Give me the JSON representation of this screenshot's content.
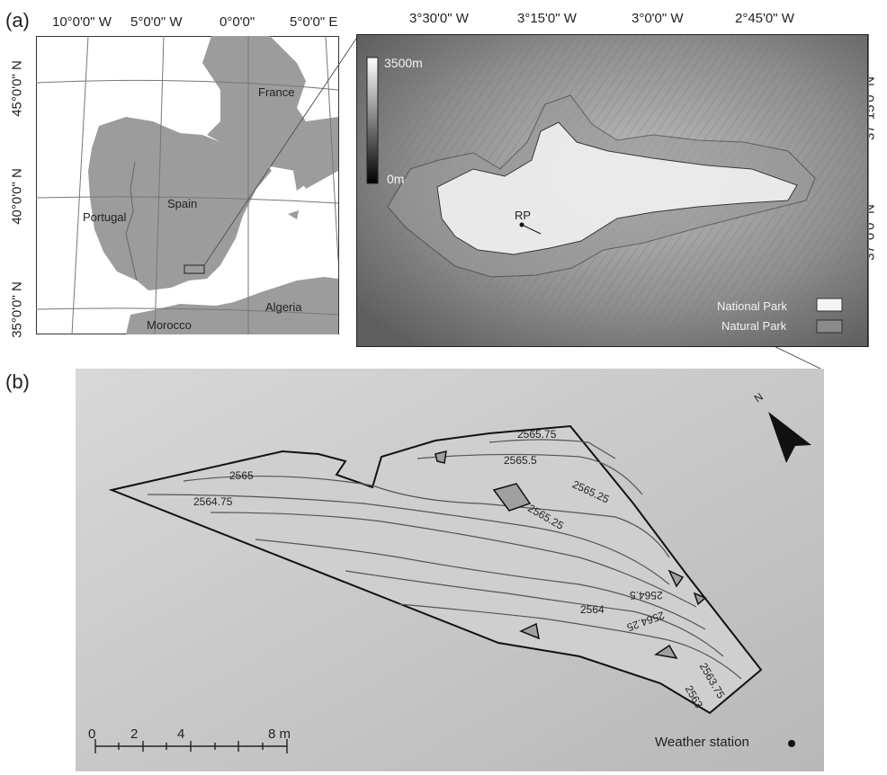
{
  "panel_a": {
    "letter": "(a)",
    "left_map": {
      "top_ticks": [
        "10°0'0\" W",
        "5°0'0\" W",
        "0°0'0\"",
        "5°0'0\" E"
      ],
      "left_ticks": [
        "45°0'0\" N",
        "40°0'0\" N",
        "35°0'0\" N"
      ],
      "labels": {
        "france": "France",
        "spain": "Spain",
        "portugal": "Portugal",
        "algeria": "Algeria",
        "morocco": "Morocco"
      }
    },
    "right_map": {
      "top_ticks": [
        "3°30'0\" W",
        "3°15'0\" W",
        "3°0'0\" W",
        "2°45'0\" W"
      ],
      "right_ticks": [
        "37°15'0\" N",
        "37°0'0\" N"
      ],
      "elevation_max": "3500m",
      "elevation_min": "0m",
      "point_label": "RP",
      "legend": {
        "national_park": "National Park",
        "natural_park": "Natural Park"
      },
      "colors": {
        "national_park": "#f4f4f4",
        "natural_park": "#8a8a8a"
      }
    }
  },
  "panel_b": {
    "letter": "(b)",
    "contours": [
      "2565.75",
      "2565.5",
      "2565",
      "2564.75",
      "2565.25",
      "2565.25",
      "2564.5",
      "2564",
      "2564.25",
      "2563.75",
      "2563"
    ],
    "north": "N",
    "scale_labels": [
      "0",
      "2",
      "4",
      "8 m"
    ],
    "legend_station": "Weather station"
  }
}
